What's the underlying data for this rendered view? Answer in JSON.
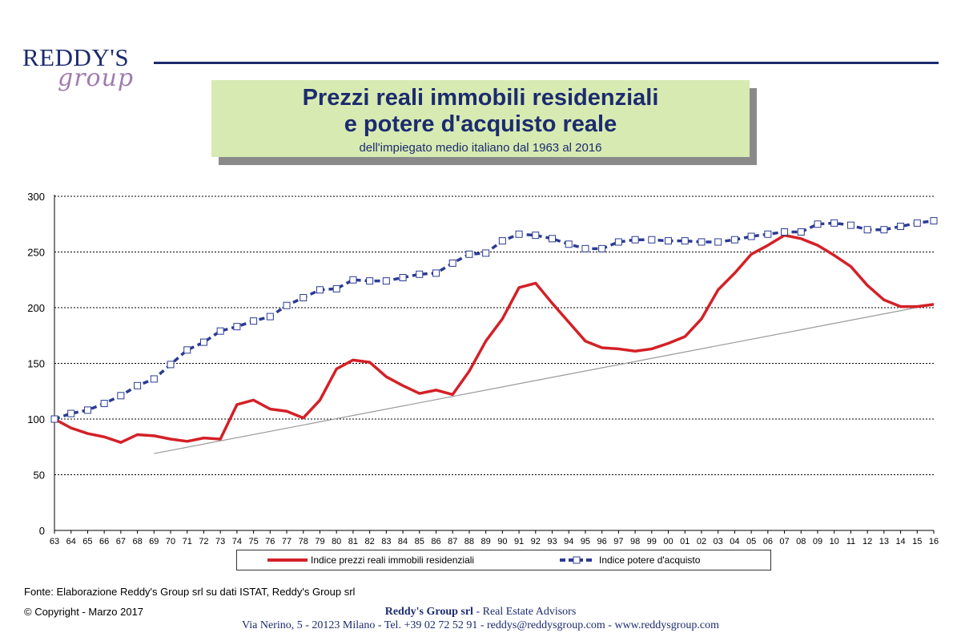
{
  "logo": {
    "main": "REDDY'S",
    "sub": "group"
  },
  "title": {
    "line1": "Prezzi reali immobili residenziali",
    "line2": "e potere d'acquisto reale",
    "subtitle": "dell'impiegato medio italiano dal 1963 al 2016"
  },
  "colors": {
    "brand": "#1c2b6e",
    "red_series": "#d42027",
    "blue_series": "#2b3b94",
    "title_bg": "#d7eab2",
    "trend": "#999999"
  },
  "chart_data": {
    "type": "line",
    "categories": [
      "63",
      "64",
      "65",
      "66",
      "67",
      "68",
      "69",
      "70",
      "71",
      "72",
      "73",
      "74",
      "75",
      "76",
      "77",
      "78",
      "79",
      "80",
      "81",
      "82",
      "83",
      "84",
      "85",
      "86",
      "87",
      "88",
      "89",
      "90",
      "91",
      "92",
      "93",
      "94",
      "95",
      "96",
      "97",
      "98",
      "99",
      "00",
      "01",
      "02",
      "03",
      "04",
      "05",
      "06",
      "07",
      "08",
      "09",
      "10",
      "11",
      "12",
      "13",
      "14",
      "15",
      "16"
    ],
    "yticks": [
      0,
      50,
      100,
      150,
      200,
      250,
      300
    ],
    "ylim": [
      0,
      300
    ],
    "grid": true,
    "legend_position": "bottom",
    "series": [
      {
        "name": "Indice prezzi  reali immobili residenziali",
        "style": "solid-red",
        "values": [
          100,
          92,
          87,
          84,
          79,
          86,
          85,
          82,
          80,
          83,
          82,
          113,
          117,
          109,
          107,
          101,
          117,
          145,
          153,
          151,
          138,
          130,
          123,
          126,
          122,
          143,
          170,
          190,
          218,
          222,
          204,
          187,
          170,
          164,
          163,
          161,
          163,
          168,
          174,
          190,
          216,
          231,
          248,
          256,
          265,
          262,
          256,
          247,
          237,
          220,
          207,
          201,
          201,
          203
        ]
      },
      {
        "name": "Indice potere d'acquisto",
        "style": "dashed-blue-squares",
        "values": [
          100,
          105,
          108,
          114,
          121,
          130,
          136,
          149,
          162,
          169,
          179,
          183,
          188,
          192,
          202,
          209,
          216,
          217,
          225,
          224,
          224,
          227,
          230,
          231,
          240,
          248,
          249,
          260,
          266,
          265,
          262,
          257,
          253,
          253,
          259,
          261,
          261,
          260,
          260,
          259,
          259,
          261,
          264,
          266,
          268,
          268,
          275,
          276,
          274,
          270,
          270,
          273,
          276,
          278
        ]
      }
    ],
    "trend_line": {
      "from": {
        "x": "69",
        "y": 69
      },
      "to": {
        "x": "16",
        "y": 203
      }
    }
  },
  "legend": {
    "red_label": "Indice prezzi  reali immobili residenziali",
    "blue_label": "Indice potere d'acquisto"
  },
  "footer": {
    "source": "Fonte: Elaborazione Reddy's Group srl su dati ISTAT, Reddy's Group srl",
    "copyright": "© Copyright - Marzo 2017",
    "company": "Reddy's Group srl",
    "company_tagline": " - Real Estate Advisors",
    "address": "Via Nerino, 5 - 20123 Milano - Tel.  +39 02 72 52 91 - reddys@reddysgroup.com - www.reddysgroup.com"
  }
}
